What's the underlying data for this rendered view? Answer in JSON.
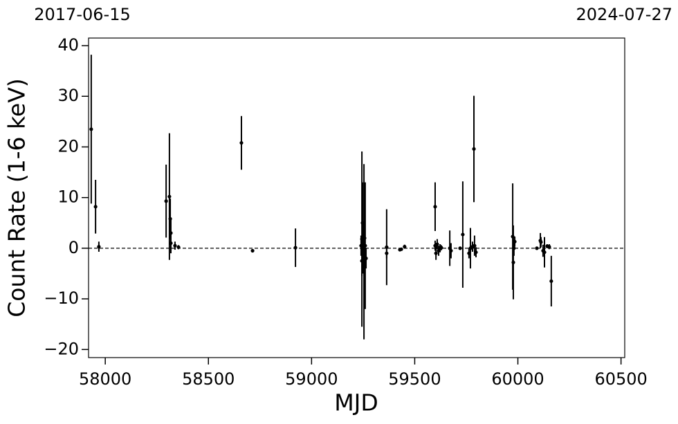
{
  "chart_data": {
    "type": "errorbar",
    "xlabel": "MJD",
    "ylabel": "Count Rate (1-6 keV)",
    "xlim": [
      57919,
      60518
    ],
    "ylim": [
      -21.6,
      41.5
    ],
    "xticks": [
      58000,
      58500,
      59000,
      59500,
      60000,
      60500
    ],
    "x2ticks": [
      {
        "value": 57919,
        "label": "2017-06-15"
      },
      {
        "value": 60518,
        "label": "2024-07-27"
      }
    ],
    "yticks": [
      {
        "value": -20,
        "label": "−20"
      },
      {
        "value": -10,
        "label": "−10"
      },
      0,
      10,
      20,
      30,
      40
    ],
    "hline": 0,
    "color": "#000000",
    "x": [
      57932,
      57953,
      57969,
      58295,
      58311,
      58315,
      58318,
      58318,
      58338,
      58355,
      58660,
      58714,
      58922,
      59240,
      59244,
      59244,
      59247,
      59250,
      59254,
      59257,
      59260,
      59264,
      59364,
      59364,
      59428,
      59435,
      59451,
      59599,
      59599,
      59603,
      59609,
      59616,
      59623,
      59629,
      59670,
      59676,
      59720,
      59733,
      59763,
      59770,
      59780,
      59787,
      59790,
      59797,
      59975,
      59978,
      59981,
      59985,
      60092,
      60109,
      60112,
      60122,
      60129,
      60142,
      60152,
      60162
    ],
    "values": [
      23.5,
      8.2,
      0.3,
      9.3,
      10.2,
      5.8,
      3,
      1,
      0.5,
      0.2,
      20.8,
      -0.5,
      0.1,
      0.5,
      1.8,
      -2.5,
      5,
      0,
      -0.7,
      2,
      0.5,
      -2,
      0.2,
      -1,
      -0.3,
      -0.2,
      0.3,
      8.2,
      0.5,
      -1,
      0.8,
      -0.5,
      0,
      0.1,
      0,
      -0.5,
      0,
      2.7,
      -1,
      0,
      0.3,
      19.6,
      0.5,
      -0.8,
      2.3,
      -2.8,
      0,
      1.3,
      0,
      1.5,
      1.2,
      -0.5,
      -0.8,
      0.4,
      0.3,
      -6.5
    ],
    "errors": [
      14.7,
      5.3,
      1,
      7.2,
      12.5,
      4,
      3,
      2,
      0.8,
      0.4,
      5.3,
      0.3,
      3.8,
      2,
      17.3,
      3,
      8,
      5,
      17.3,
      9,
      12.5,
      2,
      7.5,
      1,
      0.3,
      0.3,
      0.4,
      4.8,
      1,
      1.3,
      1,
      1,
      0.8,
      0.5,
      3.5,
      1.5,
      0.3,
      10.5,
      1,
      4,
      1,
      10.5,
      2,
      1,
      10.5,
      7.3,
      1.5,
      1,
      0.3,
      1.5,
      1,
      1.2,
      3,
      0.4,
      0.5,
      5
    ]
  }
}
